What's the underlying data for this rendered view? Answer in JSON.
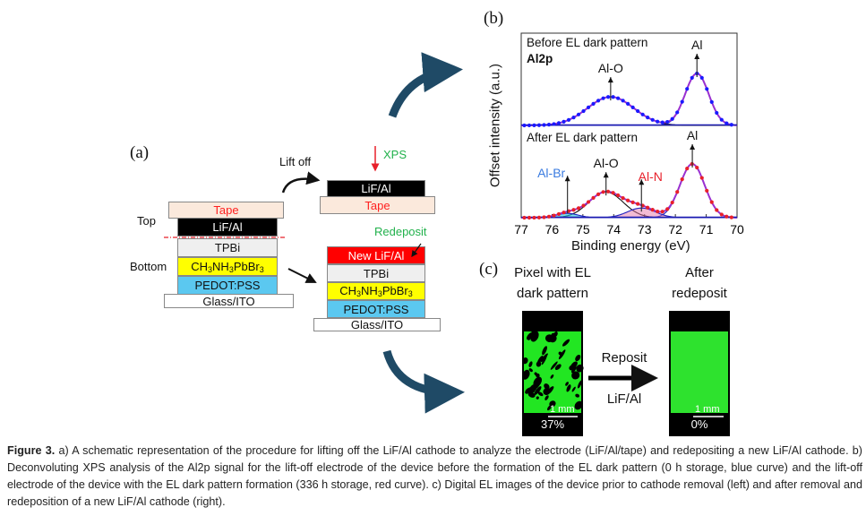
{
  "panel_a": {
    "label": "(a)",
    "lift_off": "Lift off",
    "xps": "XPS",
    "redeposit": "Redeposit",
    "top": "Top",
    "bottom": "Bottom",
    "left_stack": [
      "Tape",
      "LiF/Al",
      "TPBi",
      "CH3NH3PbBr3",
      "PEDOT:PSS",
      "Glass/ITO"
    ],
    "lifted_stack": [
      "LiF/Al",
      "Tape"
    ],
    "new_stack": [
      "New LiF/Al",
      "TPBi",
      "CH3NH3PbBr3",
      "PEDOT:PSS",
      "Glass/ITO"
    ],
    "colors": {
      "tape": "#fbe9dc",
      "lif": "#000000",
      "tpbi": "#efefef",
      "perovskite": "#ffff00",
      "pedot": "#5bc8f0",
      "glass": "#ffffff",
      "new_lif": "#ff0000",
      "xps_text": "#22b14c",
      "tape_text": "#ff2020",
      "arrow": "#1f4a66"
    }
  },
  "chart_data": {
    "type": "line",
    "panel_label": "(b)",
    "title": "Al2p",
    "xlabel": "Binding energy (eV)",
    "ylabel": "Offset intensity (a.u.)",
    "xlim": [
      77,
      70
    ],
    "xticks": [
      "77",
      "76",
      "75",
      "74",
      "73",
      "72",
      "71",
      "70"
    ],
    "series": [
      {
        "name": "Before EL dark pattern",
        "color": "#1a1aff",
        "peaks": [
          {
            "label": "Al",
            "center": 71.3,
            "height": 1.0,
            "width": 0.38
          },
          {
            "label": "Al-O",
            "center": 74.1,
            "height": 0.55,
            "width": 0.75
          }
        ]
      },
      {
        "name": "After EL dark pattern",
        "color": "#e8202a",
        "peaks": [
          {
            "label": "Al",
            "center": 71.45,
            "height": 1.0,
            "width": 0.4
          },
          {
            "label": "Al-O",
            "center": 74.25,
            "height": 0.48,
            "width": 0.55
          },
          {
            "label": "Al-N",
            "center": 73.1,
            "height": 0.18,
            "width": 0.45
          },
          {
            "label": "Al-Br",
            "center": 75.5,
            "height": 0.08,
            "width": 0.35
          }
        ]
      }
    ],
    "peak_label_colors": {
      "Al-Br": "#3a7be0",
      "Al-N": "#e8202a",
      "Al": "#111111",
      "Al-O": "#111111"
    }
  },
  "panel_c": {
    "label": "(c)",
    "left_title_1": "Pixel with EL",
    "left_title_2": "dark pattern",
    "right_title_1": "After",
    "right_title_2": "redeposit",
    "arrow_top": "Reposit",
    "arrow_bottom": "LiF/Al",
    "scale_bar": "1 mm",
    "left_percent": "37%",
    "right_percent": "0%",
    "green": "#22e622"
  },
  "caption": {
    "figure": "Figure 3.",
    "text": " a) A schematic representation of the procedure for lifting off the LiF/Al cathode to analyze the electrode (LiF/Al/tape) and redepositing a new LiF/Al cathode. b) Deconvoluting XPS analysis of the Al2p signal for the lift-off electrode of the device before the formation of the EL dark pattern (0 h storage, blue curve) and the lift-off electrode of the device with the EL dark pattern formation (336 h storage, red curve). c) Digital EL images of the device prior to cathode removal (left) and after removal and redeposition of a new LiF/Al cathode (right)."
  }
}
